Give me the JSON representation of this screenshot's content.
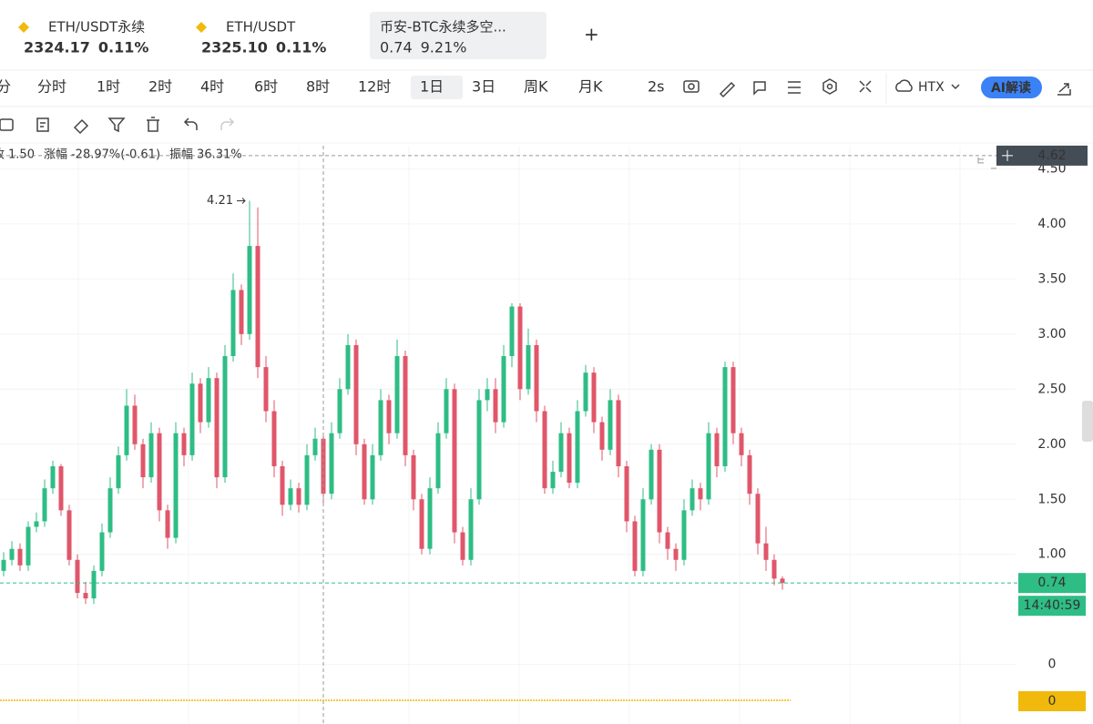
{
  "tabs": [
    {
      "name": "ETH/USDT永续",
      "price": "2324.17",
      "change": "0.11%"
    },
    {
      "name": "ETH/USDT",
      "price": "2325.10",
      "change": "0.11%"
    },
    {
      "name": "币安-BTC永续多空...",
      "price": "0.74",
      "change": "9.21%"
    }
  ],
  "periods": [
    "分",
    "分时",
    "1时",
    "2时",
    "4时",
    "6时",
    "8时",
    "12时",
    "1日",
    "3日",
    "周K",
    "月K",
    "2s"
  ],
  "active_period": 8,
  "exchange": "HTX",
  "ai_button": "AI解读",
  "legend": [
    {
      "label": "收",
      "value": "1.50"
    },
    {
      "label": "涨幅",
      "value": "-28.97%(-0.61)"
    },
    {
      "label": "振幅",
      "value": "36.31%"
    }
  ],
  "chart_data": {
    "type": "candlestick",
    "open": [
      0.85,
      0.95,
      1.05,
      0.9,
      1.25,
      1.3,
      1.6,
      1.8,
      1.4,
      0.95,
      0.65,
      0.6,
      0.85,
      1.2,
      1.6,
      1.9,
      2.35,
      2.0,
      1.7,
      2.1,
      1.4,
      1.15,
      2.1,
      1.9,
      2.55,
      2.2,
      2.6,
      1.7,
      2.8,
      3.4,
      3.0,
      3.8,
      2.7,
      2.3,
      1.8,
      1.45,
      1.6,
      1.45,
      1.9,
      2.05,
      1.55,
      2.1,
      2.5,
      2.9,
      2.0,
      1.5,
      1.9,
      2.4,
      2.1,
      2.8,
      1.9,
      1.5,
      1.05,
      1.6,
      2.1,
      2.5,
      1.2,
      0.95,
      1.5,
      2.4,
      2.5,
      2.2,
      2.8,
      3.25,
      2.5,
      2.9,
      2.3,
      1.6,
      1.75,
      2.1,
      1.65,
      2.3,
      2.65,
      2.2,
      1.95,
      2.4,
      1.8,
      1.3,
      0.85,
      1.5,
      1.95,
      1.2,
      1.05,
      0.95,
      1.4,
      1.6,
      1.5,
      2.1,
      1.8,
      2.7,
      2.1,
      1.9,
      1.55,
      1.1,
      0.95,
      0.78
    ],
    "high": [
      1.02,
      1.12,
      1.1,
      1.3,
      1.38,
      1.68,
      1.85,
      1.82,
      1.45,
      1.0,
      0.75,
      0.9,
      1.28,
      1.7,
      1.98,
      2.5,
      2.45,
      2.05,
      2.2,
      2.15,
      1.45,
      2.2,
      2.15,
      2.65,
      2.6,
      2.7,
      2.65,
      2.9,
      3.55,
      3.45,
      4.21,
      4.15,
      2.8,
      2.4,
      1.85,
      1.68,
      1.65,
      2.0,
      2.15,
      2.1,
      2.2,
      2.6,
      3.0,
      2.95,
      2.05,
      2.0,
      2.5,
      2.45,
      2.95,
      2.85,
      1.95,
      1.55,
      1.7,
      2.2,
      2.6,
      2.55,
      1.25,
      1.6,
      2.5,
      2.6,
      2.6,
      2.9,
      3.28,
      3.28,
      3.05,
      2.95,
      2.35,
      1.85,
      2.2,
      2.15,
      2.4,
      2.72,
      2.7,
      2.25,
      2.5,
      2.45,
      1.85,
      1.35,
      1.6,
      2.0,
      2.0,
      1.25,
      1.1,
      1.5,
      1.68,
      1.65,
      2.2,
      2.15,
      2.75,
      2.75,
      2.15,
      1.95,
      1.6,
      1.25,
      1.0,
      0.8
    ],
    "low": [
      0.8,
      0.9,
      0.85,
      0.85,
      1.2,
      1.25,
      1.55,
      1.35,
      0.9,
      0.6,
      0.55,
      0.55,
      0.8,
      1.15,
      1.55,
      1.85,
      1.95,
      1.6,
      1.65,
      1.3,
      1.05,
      1.1,
      1.8,
      1.85,
      2.1,
      2.15,
      1.6,
      1.65,
      2.75,
      2.9,
      2.95,
      2.6,
      2.2,
      1.7,
      1.35,
      1.4,
      1.38,
      1.4,
      1.85,
      1.45,
      1.5,
      2.05,
      2.45,
      1.9,
      1.45,
      1.45,
      1.85,
      2.0,
      2.05,
      1.8,
      1.4,
      1.0,
      1.0,
      1.55,
      2.05,
      1.1,
      0.9,
      0.9,
      1.45,
      2.3,
      2.1,
      2.15,
      2.7,
      2.4,
      2.45,
      2.2,
      1.55,
      1.55,
      1.7,
      1.6,
      1.6,
      2.25,
      2.1,
      1.85,
      1.9,
      1.7,
      1.2,
      0.8,
      0.8,
      1.45,
      1.1,
      0.95,
      0.85,
      0.9,
      1.35,
      1.4,
      1.45,
      1.7,
      1.75,
      2.0,
      1.8,
      1.45,
      1.0,
      0.85,
      0.72,
      0.68
    ],
    "close": [
      0.95,
      1.05,
      0.9,
      1.25,
      1.3,
      1.6,
      1.8,
      1.4,
      0.95,
      0.65,
      0.6,
      0.85,
      1.2,
      1.6,
      1.9,
      2.35,
      2.0,
      1.7,
      2.1,
      1.4,
      1.15,
      2.1,
      1.9,
      2.55,
      2.2,
      2.6,
      1.7,
      2.8,
      3.4,
      3.0,
      3.8,
      2.7,
      2.3,
      1.8,
      1.45,
      1.6,
      1.45,
      1.9,
      2.05,
      1.55,
      2.1,
      2.5,
      2.9,
      2.0,
      1.5,
      1.9,
      2.4,
      2.1,
      2.8,
      1.9,
      1.5,
      1.05,
      1.6,
      2.1,
      2.5,
      1.2,
      0.95,
      1.5,
      2.4,
      2.5,
      2.2,
      2.8,
      3.25,
      2.5,
      2.9,
      2.3,
      1.6,
      1.75,
      2.1,
      1.65,
      2.3,
      2.65,
      2.2,
      1.95,
      2.4,
      1.8,
      1.3,
      0.85,
      1.5,
      1.95,
      1.2,
      1.05,
      0.95,
      1.4,
      1.6,
      1.5,
      2.1,
      1.8,
      2.7,
      2.1,
      1.9,
      1.55,
      1.1,
      0.95,
      0.78,
      0.74
    ],
    "up_color": "#2ebd85",
    "down_color": "#e0566a",
    "ylim": [
      -0.54,
      4.71
    ],
    "yticks": [
      0,
      {
        "value": 1,
        "label": "1.00"
      },
      {
        "value": 1.5,
        "label": "1.50"
      },
      {
        "value": 2,
        "label": "2.00"
      },
      {
        "value": 2.5,
        "label": "2.50"
      },
      {
        "value": 3,
        "label": "3.00"
      },
      {
        "value": 3.5,
        "label": "3.50"
      },
      {
        "value": 4,
        "label": "4.00"
      },
      {
        "value": 4.5,
        "label": "4.50"
      }
    ],
    "crosshair_price": 4.62,
    "last_price": 0.74,
    "countdown": "14:40:59",
    "max_index": 30,
    "indicator": {
      "value": 0,
      "color": "#f0b90b"
    }
  }
}
